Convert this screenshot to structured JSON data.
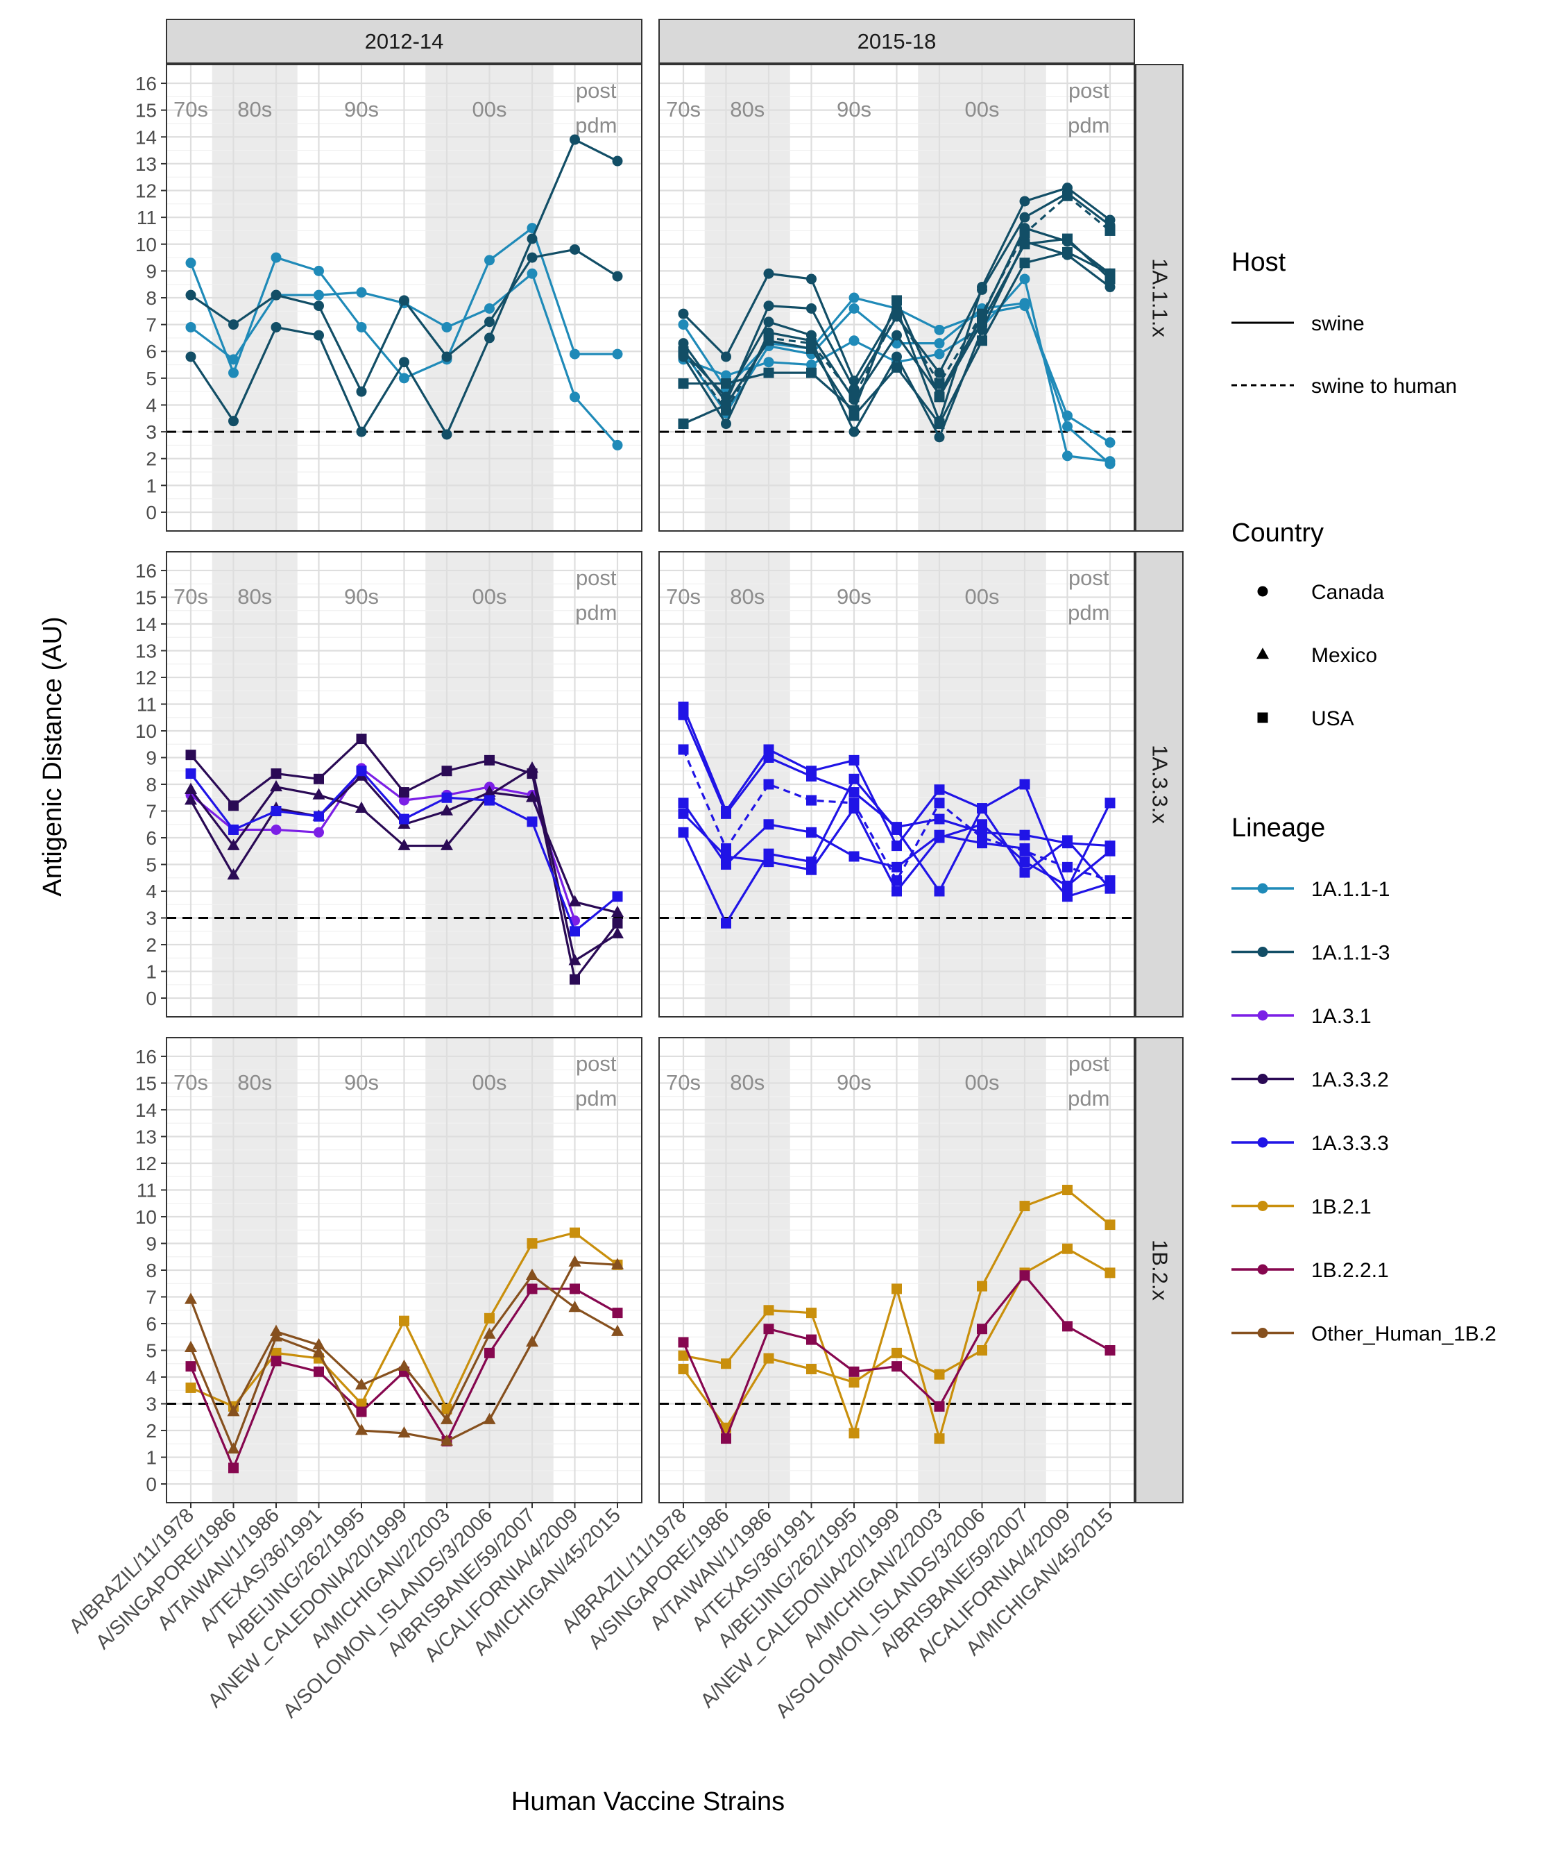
{
  "chart_data": {
    "type": "line",
    "ylabel": "Antigenic Distance (AU)",
    "xlabel": "Human Vaccine Strains",
    "ylim": [
      -0.7,
      16.7
    ],
    "yticks": [
      0,
      1,
      2,
      3,
      4,
      5,
      6,
      7,
      8,
      9,
      10,
      11,
      12,
      13,
      14,
      15,
      16
    ],
    "reference_line": 3,
    "grid": true,
    "legend_position": "right",
    "categories": [
      "A/BRAZIL/11/1978",
      "A/SINGAPORE/1986",
      "A/TAIWAN/1/1986",
      "A/TEXAS/36/1991",
      "A/BEIJING/262/1995",
      "A/NEW_CALEDONIA/20/1999",
      "A/MICHIGAN/2/2003",
      "A/SOLOMON_ISLANDS/3/2006",
      "A/BRISBANE/59/2007",
      "A/CALIFORNIA/4/2009",
      "A/MICHIGAN/45/2015"
    ],
    "eras": [
      {
        "label": "70s",
        "from": 1,
        "to": 1,
        "shaded": false
      },
      {
        "label": "80s",
        "from": 2,
        "to": 3,
        "shaded": true
      },
      {
        "label": "90s",
        "from": 4,
        "to": 6,
        "shaded": false
      },
      {
        "label": "00s",
        "from": 7,
        "to": 9,
        "shaded": true
      },
      {
        "label": "post\npdm",
        "from": 10,
        "to": 11,
        "shaded": false
      }
    ],
    "columns": [
      "2012-14",
      "2015-18"
    ],
    "rows": [
      "1A.1.1.x",
      "1A.3.3.x",
      "1B.2.x"
    ],
    "legends": {
      "host": {
        "title": "Host",
        "items": [
          {
            "label": "swine",
            "dash": "solid"
          },
          {
            "label": "swine to human",
            "dash": "dashed"
          }
        ]
      },
      "country": {
        "title": "Country",
        "items": [
          {
            "label": "Canada",
            "shape": "circle"
          },
          {
            "label": "Mexico",
            "shape": "triangle"
          },
          {
            "label": "USA",
            "shape": "square"
          }
        ]
      },
      "lineage": {
        "title": "Lineage",
        "items": [
          {
            "label": "1A.1.1-1",
            "color": "#1f8ab8"
          },
          {
            "label": "1A.1.1-3",
            "color": "#124e66"
          },
          {
            "label": "1A.3.1",
            "color": "#7b1fe6"
          },
          {
            "label": "1A.3.3.2",
            "color": "#2a0a55"
          },
          {
            "label": "1A.3.3.3",
            "color": "#2014e6"
          },
          {
            "label": "1B.2.1",
            "color": "#c98f0c"
          },
          {
            "label": "1B.2.2.1",
            "color": "#86074f"
          },
          {
            "label": "Other_Human_1B.2",
            "color": "#86501e"
          }
        ]
      }
    },
    "panels": [
      {
        "row": 0,
        "col": 0,
        "series": [
          {
            "lineage": "1A.1.1-1",
            "country": "Canada",
            "host": "swine",
            "values": [
              9.3,
              5.2,
              9.5,
              9.0,
              6.9,
              5.0,
              5.7,
              9.4,
              10.6,
              5.9,
              5.9
            ]
          },
          {
            "lineage": "1A.1.1-1",
            "country": "Canada",
            "host": "swine",
            "values": [
              6.9,
              5.7,
              8.1,
              8.1,
              8.2,
              7.8,
              6.9,
              7.6,
              8.9,
              4.3,
              2.5
            ]
          },
          {
            "lineage": "1A.1.1-3",
            "country": "Canada",
            "host": "swine",
            "values": [
              8.1,
              7.0,
              8.1,
              7.7,
              4.5,
              7.9,
              5.8,
              7.1,
              9.5,
              9.8,
              8.8
            ]
          },
          {
            "lineage": "1A.1.1-3",
            "country": "Canada",
            "host": "swine",
            "values": [
              5.8,
              3.4,
              6.9,
              6.6,
              3.0,
              5.6,
              2.9,
              6.5,
              10.2,
              13.9,
              13.1
            ]
          }
        ]
      },
      {
        "row": 0,
        "col": 1,
        "series": [
          {
            "lineage": "1A.1.1-1",
            "country": "Canada",
            "host": "swine",
            "values": [
              7.0,
              4.6,
              6.3,
              6.1,
              8.0,
              7.6,
              6.8,
              7.4,
              7.7,
              3.6,
              2.6
            ]
          },
          {
            "lineage": "1A.1.1-1",
            "country": "Canada",
            "host": "swine",
            "values": [
              5.7,
              5.1,
              5.6,
              5.5,
              6.4,
              5.6,
              5.9,
              6.9,
              8.7,
              2.1,
              1.9
            ]
          },
          {
            "lineage": "1A.1.1-1",
            "country": "Canada",
            "host": "swine",
            "values": [
              6.0,
              3.7,
              6.2,
              5.9,
              7.6,
              6.3,
              6.3,
              7.6,
              7.8,
              3.2,
              1.8
            ]
          },
          {
            "lineage": "1A.1.1-3",
            "country": "Canada",
            "host": "swine",
            "values": [
              7.4,
              5.8,
              8.9,
              8.7,
              4.9,
              7.6,
              3.4,
              8.4,
              11.6,
              12.1,
              10.9
            ]
          },
          {
            "lineage": "1A.1.1-3",
            "country": "Canada",
            "host": "swine",
            "values": [
              6.3,
              4.1,
              7.7,
              7.6,
              4.6,
              7.3,
              5.2,
              8.3,
              11.0,
              11.9,
              10.7
            ]
          },
          {
            "lineage": "1A.1.1-3",
            "country": "Canada",
            "host": "swine",
            "values": [
              6.0,
              4.3,
              7.1,
              6.6,
              4.2,
              6.6,
              4.4,
              7.3,
              10.6,
              10.1,
              8.9
            ]
          },
          {
            "lineage": "1A.1.1-3",
            "country": "Canada",
            "host": "swine",
            "values": [
              5.8,
              3.3,
              6.7,
              6.4,
              3.0,
              5.8,
              2.8,
              6.8,
              10.1,
              9.6,
              8.4
            ]
          },
          {
            "lineage": "1A.1.1-3",
            "country": "USA",
            "host": "swine",
            "values": [
              4.8,
              4.8,
              5.2,
              5.2,
              3.8,
              7.9,
              4.3,
              7.1,
              10.0,
              10.2,
              8.7
            ]
          },
          {
            "lineage": "1A.1.1-3",
            "country": "USA",
            "host": "swine",
            "values": [
              3.3,
              4.0,
              6.4,
              6.1,
              3.6,
              5.4,
              3.3,
              6.4,
              9.3,
              9.7,
              8.9
            ]
          },
          {
            "lineage": "1A.1.1-3",
            "country": "USA",
            "host": "swine to human",
            "values": [
              6.0,
              3.8,
              6.5,
              6.3,
              4.3,
              7.4,
              4.8,
              7.4,
              10.4,
              11.8,
              10.5
            ]
          }
        ]
      },
      {
        "row": 1,
        "col": 0,
        "series": [
          {
            "lineage": "1A.3.1",
            "country": "Canada",
            "host": "swine",
            "values": [
              7.6,
              6.3,
              6.3,
              6.2,
              8.6,
              7.4,
              7.6,
              7.9,
              7.6,
              2.9,
              null
            ]
          },
          {
            "lineage": "1A.3.3.2",
            "country": "USA",
            "host": "swine",
            "values": [
              9.1,
              7.2,
              8.4,
              8.2,
              9.7,
              7.7,
              8.5,
              8.9,
              8.4,
              0.7,
              2.8
            ]
          },
          {
            "lineage": "1A.3.3.2",
            "country": "Mexico",
            "host": "swine",
            "values": [
              7.8,
              5.7,
              7.9,
              7.6,
              7.1,
              5.7,
              5.7,
              7.6,
              8.6,
              1.4,
              2.4
            ]
          },
          {
            "lineage": "1A.3.3.2",
            "country": "Mexico",
            "host": "swine",
            "values": [
              7.4,
              4.6,
              7.1,
              6.8,
              8.3,
              6.5,
              7.0,
              7.7,
              7.5,
              3.6,
              3.2
            ]
          },
          {
            "lineage": "1A.3.3.3",
            "country": "USA",
            "host": "swine",
            "values": [
              8.4,
              6.3,
              7.0,
              6.8,
              8.5,
              6.7,
              7.5,
              7.4,
              6.6,
              2.5,
              3.8
            ]
          }
        ]
      },
      {
        "row": 1,
        "col": 1,
        "series": [
          {
            "lineage": "1A.3.3.3",
            "country": "USA",
            "host": "swine",
            "values": [
              10.9,
              7.0,
              9.3,
              8.5,
              8.9,
              5.7,
              7.8,
              7.1,
              8.0,
              4.1,
              7.3
            ]
          },
          {
            "lineage": "1A.3.3.3",
            "country": "USA",
            "host": "swine",
            "values": [
              10.6,
              6.9,
              9.0,
              8.3,
              7.7,
              6.4,
              6.7,
              6.2,
              6.1,
              5.8,
              5.7
            ]
          },
          {
            "lineage": "1A.3.3.3",
            "country": "USA",
            "host": "swine to human",
            "values": [
              9.3,
              5.6,
              8.0,
              7.4,
              7.3,
              4.4,
              7.3,
              6.0,
              5.5,
              4.9,
              4.4
            ]
          },
          {
            "lineage": "1A.3.3.3",
            "country": "USA",
            "host": "swine",
            "values": [
              7.3,
              5.0,
              6.5,
              6.2,
              5.3,
              4.9,
              6.1,
              5.8,
              5.6,
              3.8,
              4.3
            ]
          },
          {
            "lineage": "1A.3.3.3",
            "country": "USA",
            "host": "swine",
            "values": [
              6.9,
              5.3,
              5.1,
              4.8,
              7.1,
              4.0,
              6.0,
              6.5,
              5.1,
              4.2,
              5.5
            ]
          },
          {
            "lineage": "1A.3.3.3",
            "country": "USA",
            "host": "swine",
            "values": [
              6.2,
              2.8,
              5.4,
              5.1,
              8.2,
              6.3,
              4.0,
              7.1,
              4.7,
              5.9,
              4.1
            ]
          }
        ]
      },
      {
        "row": 2,
        "col": 0,
        "series": [
          {
            "lineage": "1B.2.1",
            "country": "USA",
            "host": "swine",
            "values": [
              3.6,
              2.9,
              4.9,
              4.7,
              3.0,
              6.1,
              2.8,
              6.2,
              9.0,
              9.4,
              8.2
            ]
          },
          {
            "lineage": "1B.2.2.1",
            "country": "USA",
            "host": "swine",
            "values": [
              4.4,
              0.6,
              4.6,
              4.2,
              2.7,
              4.2,
              1.6,
              4.9,
              7.3,
              7.3,
              6.4
            ]
          },
          {
            "lineage": "Other_Human_1B.2",
            "country": "Mexico",
            "host": "swine",
            "values": [
              6.9,
              2.7,
              5.7,
              5.2,
              3.7,
              4.4,
              2.4,
              5.6,
              7.8,
              6.6,
              5.7
            ]
          },
          {
            "lineage": "Other_Human_1B.2",
            "country": "Mexico",
            "host": "swine",
            "values": [
              5.1,
              1.3,
              5.5,
              4.9,
              2.0,
              1.9,
              1.6,
              2.4,
              5.3,
              8.3,
              8.2
            ]
          }
        ]
      },
      {
        "row": 2,
        "col": 1,
        "series": [
          {
            "lineage": "1B.2.1",
            "country": "USA",
            "host": "swine",
            "values": [
              4.8,
              4.5,
              6.5,
              6.4,
              1.9,
              7.3,
              1.7,
              7.4,
              10.4,
              11.0,
              9.7
            ]
          },
          {
            "lineage": "1B.2.1",
            "country": "USA",
            "host": "swine",
            "values": [
              4.3,
              2.1,
              4.7,
              4.3,
              3.8,
              4.9,
              4.1,
              5.0,
              7.9,
              8.8,
              7.9
            ]
          },
          {
            "lineage": "1B.2.2.1",
            "country": "USA",
            "host": "swine",
            "values": [
              5.3,
              1.7,
              5.8,
              5.4,
              4.2,
              4.4,
              2.9,
              5.8,
              7.8,
              5.9,
              5.0
            ]
          }
        ]
      }
    ]
  }
}
